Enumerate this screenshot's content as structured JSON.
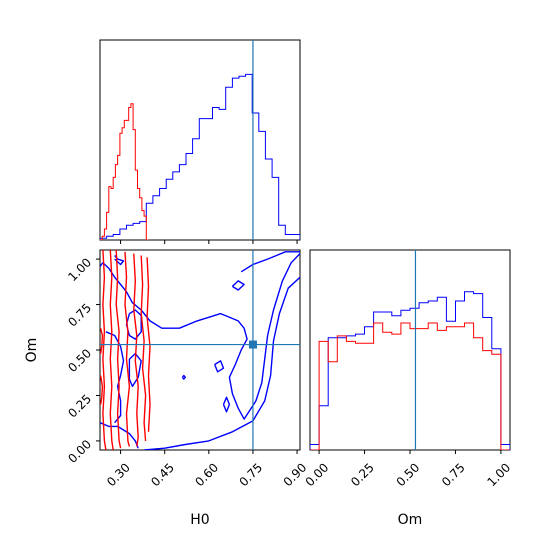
{
  "chart_data": {
    "type": "corner",
    "parameters": [
      "H0",
      "Om"
    ],
    "axis_labels": {
      "H0": "H0",
      "Om": "Om"
    },
    "truth": {
      "H0": 0.75,
      "Om": 0.53
    },
    "truth_color": "#1f77b4",
    "ranges": {
      "H0": [
        0.23,
        0.91
      ],
      "Om": [
        -0.05,
        1.05
      ]
    },
    "ticks": {
      "H0": [
        "0.30",
        "0.45",
        "0.60",
        "0.75",
        "0.90"
      ],
      "Om": [
        "0.00",
        "0.25",
        "0.50",
        "0.75",
        "1.00"
      ]
    },
    "series": [
      {
        "color": "#0000ff",
        "H0_histogram": {
          "edges": [
            0.23,
            0.2525,
            0.275,
            0.2975,
            0.32,
            0.3425,
            0.365,
            0.3875,
            0.41,
            0.4325,
            0.455,
            0.4775,
            0.5,
            0.5225,
            0.545,
            0.5675,
            0.59,
            0.6125,
            0.635,
            0.6575,
            0.68,
            0.7025,
            0.725,
            0.7475,
            0.77,
            0.7925,
            0.815,
            0.8375,
            0.86,
            0.8825,
            0.91
          ],
          "counts": [
            0.01,
            0.02,
            0.03,
            0.06,
            0.08,
            0.09,
            0.1,
            0.2,
            0.24,
            0.28,
            0.33,
            0.37,
            0.41,
            0.47,
            0.55,
            0.66,
            0.66,
            0.72,
            0.71,
            0.83,
            0.88,
            0.89,
            0.9,
            0.69,
            0.59,
            0.44,
            0.34,
            0.08,
            0.03,
            0.03
          ]
        },
        "Om_histogram": {
          "edges": [
            -0.05,
            0.0,
            0.05,
            0.1,
            0.15,
            0.2,
            0.25,
            0.3,
            0.35,
            0.4,
            0.45,
            0.5,
            0.55,
            0.6,
            0.65,
            0.7,
            0.75,
            0.8,
            0.85,
            0.9,
            0.95,
            1.0,
            1.05
          ],
          "counts": [
            0.03,
            0.24,
            0.61,
            0.61,
            0.62,
            0.63,
            0.67,
            0.75,
            0.75,
            0.73,
            0.76,
            0.77,
            0.8,
            0.81,
            0.83,
            0.7,
            0.81,
            0.86,
            0.85,
            0.72,
            0.55,
            0.03
          ]
        },
        "contours": [
          [
            [
              0.71,
              0.93
            ],
            [
              0.75,
              0.97
            ],
            [
              0.8,
              1.0
            ],
            [
              0.83,
              1.02
            ],
            [
              0.86,
              1.04
            ],
            [
              0.91,
              1.04
            ]
          ],
          [
            [
              0.91,
              0.9
            ],
            [
              0.87,
              0.84
            ],
            [
              0.84,
              0.7
            ],
            [
              0.82,
              0.55
            ],
            [
              0.81,
              0.36
            ],
            [
              0.79,
              0.22
            ],
            [
              0.75,
              0.11
            ],
            [
              0.68,
              0.05
            ],
            [
              0.6,
              0.0
            ],
            [
              0.52,
              -0.02
            ],
            [
              0.45,
              -0.04
            ],
            [
              0.38,
              -0.05
            ]
          ],
          [
            [
              0.91,
              1.03
            ],
            [
              0.88,
              0.98
            ],
            [
              0.85,
              0.88
            ],
            [
              0.82,
              0.72
            ],
            [
              0.8,
              0.58
            ],
            [
              0.79,
              0.45
            ],
            [
              0.78,
              0.32
            ],
            [
              0.76,
              0.22
            ],
            [
              0.72,
              0.12
            ],
            [
              0.7,
              0.18
            ],
            [
              0.68,
              0.26
            ],
            [
              0.67,
              0.35
            ],
            [
              0.69,
              0.42
            ],
            [
              0.71,
              0.5
            ],
            [
              0.73,
              0.56
            ],
            [
              0.72,
              0.62
            ],
            [
              0.7,
              0.66
            ],
            [
              0.64,
              0.7
            ],
            [
              0.6,
              0.68
            ],
            [
              0.56,
              0.66
            ],
            [
              0.5,
              0.62
            ],
            [
              0.44,
              0.62
            ],
            [
              0.4,
              0.66
            ],
            [
              0.37,
              0.72
            ],
            [
              0.34,
              0.76
            ],
            [
              0.32,
              0.82
            ],
            [
              0.3,
              0.86
            ],
            [
              0.28,
              0.9
            ],
            [
              0.26,
              0.95
            ],
            [
              0.24,
              0.98
            ],
            [
              0.23,
              0.96
            ]
          ],
          [
            [
              0.62,
              0.42
            ],
            [
              0.64,
              0.44
            ],
            [
              0.65,
              0.4
            ],
            [
              0.63,
              0.38
            ],
            [
              0.62,
              0.42
            ]
          ],
          [
            [
              0.65,
              0.2
            ],
            [
              0.66,
              0.24
            ],
            [
              0.67,
              0.2
            ],
            [
              0.66,
              0.16
            ],
            [
              0.65,
              0.2
            ]
          ],
          [
            [
              0.68,
              0.85
            ],
            [
              0.7,
              0.88
            ],
            [
              0.72,
              0.86
            ],
            [
              0.7,
              0.83
            ],
            [
              0.68,
              0.85
            ]
          ],
          [
            [
              0.28,
              1.02
            ],
            [
              0.29,
              1.0
            ],
            [
              0.31,
              0.99
            ],
            [
              0.3,
              0.97
            ],
            [
              0.28,
              1.0
            ]
          ],
          [
            [
              0.33,
              0.7
            ],
            [
              0.35,
              0.72
            ],
            [
              0.37,
              0.69
            ],
            [
              0.37,
              0.6
            ],
            [
              0.35,
              0.56
            ],
            [
              0.33,
              0.58
            ],
            [
              0.32,
              0.64
            ],
            [
              0.33,
              0.7
            ]
          ],
          [
            [
              0.33,
              0.45
            ],
            [
              0.35,
              0.48
            ],
            [
              0.37,
              0.44
            ],
            [
              0.36,
              0.35
            ],
            [
              0.34,
              0.3
            ],
            [
              0.33,
              0.34
            ],
            [
              0.33,
              0.45
            ]
          ],
          [
            [
              0.23,
              0.1
            ],
            [
              0.26,
              0.08
            ],
            [
              0.29,
              0.08
            ],
            [
              0.31,
              0.06
            ],
            [
              0.33,
              0.04
            ],
            [
              0.35,
              0.0
            ],
            [
              0.36,
              -0.04
            ]
          ],
          [
            [
              0.25,
              0.6
            ],
            [
              0.28,
              0.58
            ],
            [
              0.3,
              0.52
            ],
            [
              0.31,
              0.44
            ],
            [
              0.3,
              0.36
            ],
            [
              0.29,
              0.3
            ],
            [
              0.3,
              0.22
            ],
            [
              0.3,
              0.14
            ],
            [
              0.28,
              0.1
            ]
          ],
          [
            [
              0.51,
              0.35
            ],
            [
              0.515,
              0.36
            ],
            [
              0.52,
              0.35
            ],
            [
              0.515,
              0.34
            ],
            [
              0.51,
              0.35
            ]
          ]
        ]
      },
      {
        "color": "#ff0000",
        "H0_histogram": {
          "edges": [
            0.23,
            0.2375,
            0.245,
            0.2525,
            0.26,
            0.2675,
            0.275,
            0.2825,
            0.29,
            0.2975,
            0.305,
            0.3125,
            0.32,
            0.3275,
            0.335,
            0.3425,
            0.35,
            0.3575,
            0.365,
            0.3725,
            0.38,
            0.3875,
            0.395
          ],
          "counts": [
            0.0,
            0.02,
            0.06,
            0.15,
            0.29,
            0.28,
            0.34,
            0.41,
            0.46,
            0.58,
            0.61,
            0.65,
            0.65,
            0.72,
            0.74,
            0.6,
            0.38,
            0.28,
            0.23,
            0.16,
            0.13,
            0.0
          ]
        },
        "Om_histogram": {
          "edges": [
            -0.05,
            0.0,
            0.05,
            0.1,
            0.15,
            0.2,
            0.25,
            0.3,
            0.35,
            0.4,
            0.45,
            0.5,
            0.55,
            0.6,
            0.65,
            0.7,
            0.75,
            0.8,
            0.85,
            0.9,
            0.95,
            1.0,
            1.05
          ],
          "counts": [
            0.0,
            0.59,
            0.48,
            0.62,
            0.59,
            0.58,
            0.58,
            0.69,
            0.64,
            0.63,
            0.69,
            0.66,
            0.66,
            0.69,
            0.65,
            0.67,
            0.67,
            0.69,
            0.61,
            0.54,
            0.52,
            0.0
          ]
        },
        "contours": [
          [
            [
              0.24,
              1.05
            ],
            [
              0.245,
              0.9
            ],
            [
              0.24,
              0.75
            ],
            [
              0.245,
              0.6
            ],
            [
              0.24,
              0.45
            ],
            [
              0.245,
              0.3
            ],
            [
              0.24,
              0.15
            ],
            [
              0.245,
              0.0
            ],
            [
              0.25,
              -0.05
            ]
          ],
          [
            [
              0.265,
              1.05
            ],
            [
              0.27,
              0.9
            ],
            [
              0.265,
              0.75
            ],
            [
              0.27,
              0.6
            ],
            [
              0.265,
              0.45
            ],
            [
              0.27,
              0.3
            ],
            [
              0.265,
              0.15
            ],
            [
              0.27,
              0.0
            ],
            [
              0.275,
              -0.05
            ]
          ],
          [
            [
              0.285,
              1.05
            ],
            [
              0.29,
              0.9
            ],
            [
              0.285,
              0.75
            ],
            [
              0.295,
              0.6
            ],
            [
              0.29,
              0.45
            ],
            [
              0.295,
              0.3
            ],
            [
              0.29,
              0.15
            ],
            [
              0.295,
              0.0
            ],
            [
              0.3,
              -0.04
            ]
          ],
          [
            [
              0.315,
              1.04
            ],
            [
              0.32,
              0.9
            ],
            [
              0.315,
              0.75
            ],
            [
              0.325,
              0.6
            ],
            [
              0.32,
              0.45
            ],
            [
              0.33,
              0.3
            ],
            [
              0.32,
              0.15
            ],
            [
              0.325,
              0.0
            ],
            [
              0.33,
              -0.03
            ]
          ],
          [
            [
              0.345,
              1.03
            ],
            [
              0.35,
              0.88
            ],
            [
              0.345,
              0.72
            ],
            [
              0.355,
              0.58
            ],
            [
              0.35,
              0.44
            ],
            [
              0.36,
              0.3
            ],
            [
              0.355,
              0.15
            ],
            [
              0.36,
              0.02
            ],
            [
              0.355,
              -0.03
            ]
          ],
          [
            [
              0.37,
              1.02
            ],
            [
              0.375,
              0.86
            ],
            [
              0.37,
              0.7
            ],
            [
              0.38,
              0.55
            ],
            [
              0.375,
              0.4
            ],
            [
              0.385,
              0.25
            ],
            [
              0.38,
              0.1
            ],
            [
              0.385,
              0.0
            ]
          ],
          [
            [
              0.39,
              1.01
            ],
            [
              0.395,
              0.85
            ],
            [
              0.39,
              0.68
            ],
            [
              0.4,
              0.52
            ],
            [
              0.395,
              0.36
            ],
            [
              0.4,
              0.2
            ],
            [
              0.395,
              0.05
            ]
          ],
          [
            [
              0.232,
              0.62
            ],
            [
              0.238,
              0.58
            ],
            [
              0.236,
              0.52
            ],
            [
              0.232,
              0.48
            ]
          ],
          [
            [
              0.232,
              0.36
            ],
            [
              0.238,
              0.3
            ],
            [
              0.236,
              0.24
            ],
            [
              0.232,
              0.2
            ]
          ]
        ]
      }
    ]
  }
}
